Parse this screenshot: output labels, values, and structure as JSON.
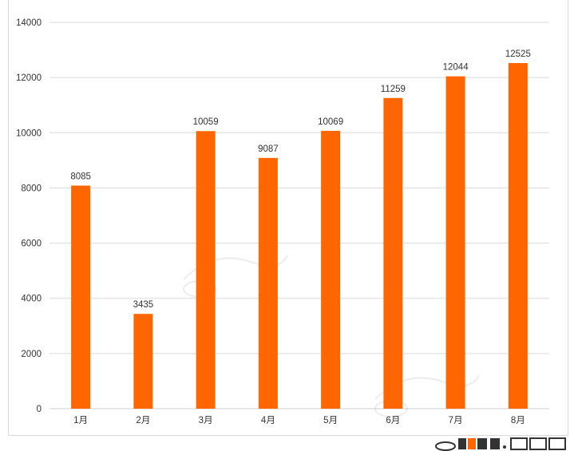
{
  "chart_data": {
    "type": "bar",
    "categories": [
      "1月",
      "2月",
      "3月",
      "4月",
      "5月",
      "6月",
      "7月",
      "8月"
    ],
    "values": [
      8085,
      3435,
      10059,
      9087,
      10069,
      11259,
      12044,
      12525
    ],
    "ylim": [
      0,
      14000
    ],
    "yticks": [
      0,
      2000,
      4000,
      6000,
      8000,
      10000,
      12000,
      14000
    ],
    "grid": true,
    "bar_color": "#ff6600",
    "gridline_color": "#d9d9d9",
    "text_color": "#333333"
  }
}
